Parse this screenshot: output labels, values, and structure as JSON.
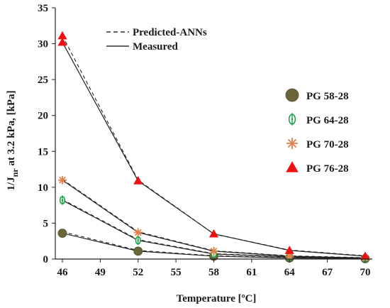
{
  "chart_data": {
    "type": "line",
    "xlabel": "Temperature [ºC]",
    "ylabel": "1/J",
    "ylabel_sub": "nr",
    "ylabel_rest": " at 3.2 kPa, [kPa]",
    "xlim": [
      46,
      70
    ],
    "ylim": [
      0,
      35
    ],
    "x_ticks": [
      "46",
      "49",
      "52",
      "55",
      "58",
      "61",
      "64",
      "67",
      "70"
    ],
    "x_tick_values": [
      46,
      49,
      52,
      55,
      58,
      61,
      64,
      67,
      70
    ],
    "y_ticks": [
      "0",
      "5",
      "10",
      "15",
      "20",
      "25",
      "30",
      "35"
    ],
    "y_tick_values": [
      0,
      5,
      10,
      15,
      20,
      25,
      30,
      35
    ],
    "line_legend": [
      {
        "label": "Predicted-ANNs",
        "style": "dashed"
      },
      {
        "label": "Measured",
        "style": "solid"
      }
    ],
    "x": [
      46,
      52,
      58,
      64,
      70
    ],
    "series": [
      {
        "name": "PG 58-28",
        "marker": "circle",
        "color": "#6b6537",
        "measured": [
          3.6,
          1.1,
          0.4,
          0.15,
          0.05
        ],
        "predicted": [
          3.8,
          1.2,
          0.45,
          0.2,
          0.08
        ]
      },
      {
        "name": "PG 64-28",
        "marker": "diamond",
        "color": "#1aa34a",
        "measured": [
          8.2,
          2.6,
          0.7,
          0.3,
          0.1
        ],
        "predicted": [
          8.3,
          2.7,
          0.75,
          0.32,
          0.12
        ]
      },
      {
        "name": "PG 70-28",
        "marker": "asterisk",
        "color": "#e0824a",
        "measured": [
          11.0,
          3.7,
          1.1,
          0.4,
          0.15
        ],
        "predicted": [
          11.1,
          3.8,
          1.15,
          0.45,
          0.18
        ]
      },
      {
        "name": "PG 76-28",
        "marker": "triangle",
        "color": "#ee1111",
        "measured": [
          30.2,
          10.9,
          3.5,
          1.2,
          0.4
        ],
        "predicted": [
          31.1,
          11.0,
          3.5,
          1.25,
          0.45
        ]
      }
    ]
  }
}
